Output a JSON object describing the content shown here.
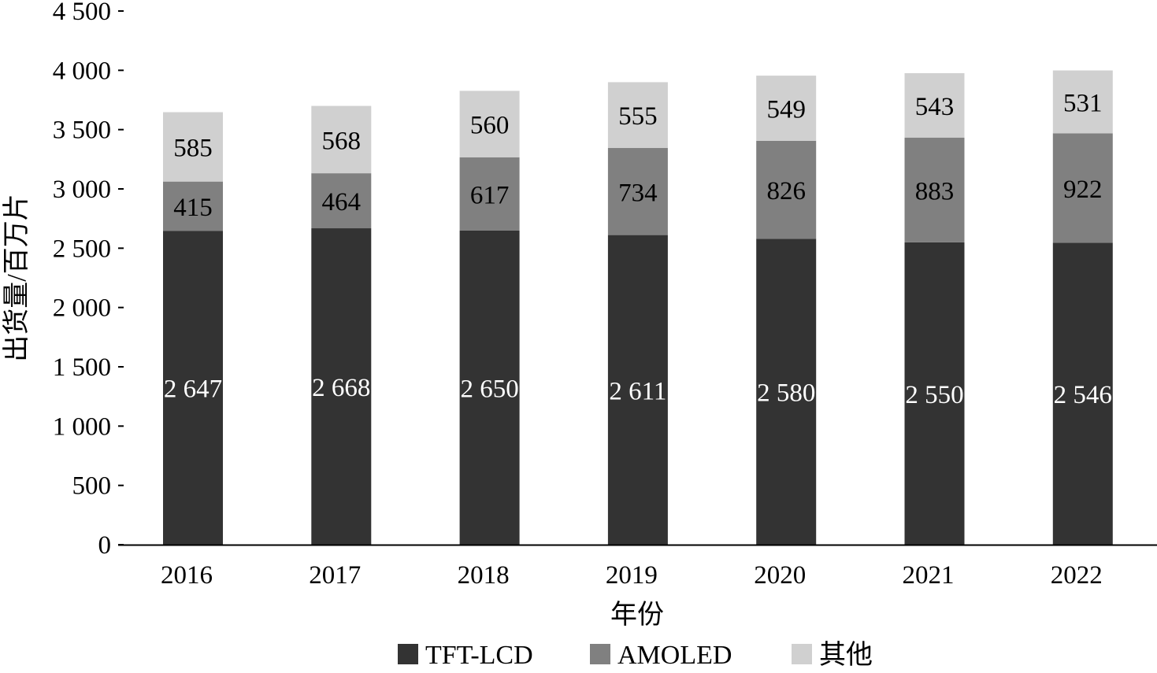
{
  "chart_data": {
    "type": "bar",
    "stacked": true,
    "title": "",
    "xlabel": "年份",
    "ylabel": "出货量/百万片",
    "ylim": [
      0,
      4500
    ],
    "yticks": [
      0,
      500,
      1000,
      1500,
      2000,
      2500,
      3000,
      3500,
      4000,
      4500
    ],
    "ytick_labels": [
      "0",
      "500",
      "1 000",
      "1 500",
      "2 000",
      "2 500",
      "3 000",
      "3 500",
      "4 000",
      "4 500"
    ],
    "categories": [
      "2016",
      "2017",
      "2018",
      "2019",
      "2020",
      "2021",
      "2022"
    ],
    "series": [
      {
        "name": "TFT-LCD",
        "color": "#333333",
        "label_color": "#ffffff",
        "values": [
          2647,
          2668,
          2650,
          2611,
          2580,
          2550,
          2546
        ],
        "value_labels": [
          "2 647",
          "2 668",
          "2 650",
          "2 611",
          "2 580",
          "2 550",
          "2 546"
        ]
      },
      {
        "name": "AMOLED",
        "color": "#808080",
        "label_color": "#000000",
        "values": [
          415,
          464,
          617,
          734,
          826,
          883,
          922
        ],
        "value_labels": [
          "415",
          "464",
          "617",
          "734",
          "826",
          "883",
          "922"
        ]
      },
      {
        "name": "其他",
        "color": "#d0d0d0",
        "label_color": "#000000",
        "values": [
          585,
          568,
          560,
          555,
          549,
          543,
          531
        ],
        "value_labels": [
          "585",
          "568",
          "560",
          "555",
          "549",
          "543",
          "531"
        ]
      }
    ],
    "grid": false,
    "legend_position": "bottom"
  }
}
